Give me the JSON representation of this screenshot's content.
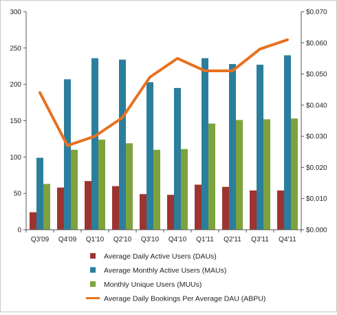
{
  "chart_data": {
    "type": "bar",
    "categories": [
      "Q3'09",
      "Q4'09",
      "Q1'10",
      "Q2'10",
      "Q3'10",
      "Q4'10",
      "Q1'11",
      "Q2'11",
      "Q3'11",
      "Q4'11"
    ],
    "series": [
      {
        "name": "Average Daily Active Users (DAUs)",
        "type": "bar",
        "axis": "left",
        "color": "#9e3431",
        "values": [
          24,
          58,
          67,
          60,
          49,
          48,
          62,
          59,
          54,
          54
        ]
      },
      {
        "name": "Average Monthly Active Users (MAUs)",
        "type": "bar",
        "axis": "left",
        "color": "#2b7e9c",
        "values": [
          99,
          207,
          236,
          234,
          203,
          195,
          236,
          228,
          227,
          240
        ]
      },
      {
        "name": "Monthly Unique Users (MUUs)",
        "type": "bar",
        "axis": "left",
        "color": "#7ea33c",
        "values": [
          63,
          110,
          124,
          119,
          110,
          111,
          146,
          151,
          152,
          153
        ]
      },
      {
        "name": "Average Daily Bookings Per Average DAU (ABPU)",
        "type": "line",
        "axis": "right",
        "color": "#e8711f",
        "values": [
          0.044,
          0.027,
          0.03,
          0.036,
          0.049,
          0.055,
          0.051,
          0.051,
          0.058,
          0.061
        ]
      }
    ],
    "y_left": {
      "min": 0,
      "max": 300,
      "ticks": [
        "0",
        "50",
        "100",
        "150",
        "200",
        "250",
        "300"
      ]
    },
    "y_right": {
      "min": 0,
      "max": 0.07,
      "ticks": [
        "$0.000",
        "$0.010",
        "$0.020",
        "$0.030",
        "$0.040",
        "$0.050",
        "$0.060",
        "$0.070"
      ]
    },
    "grid": false,
    "legend_position": "bottom"
  }
}
